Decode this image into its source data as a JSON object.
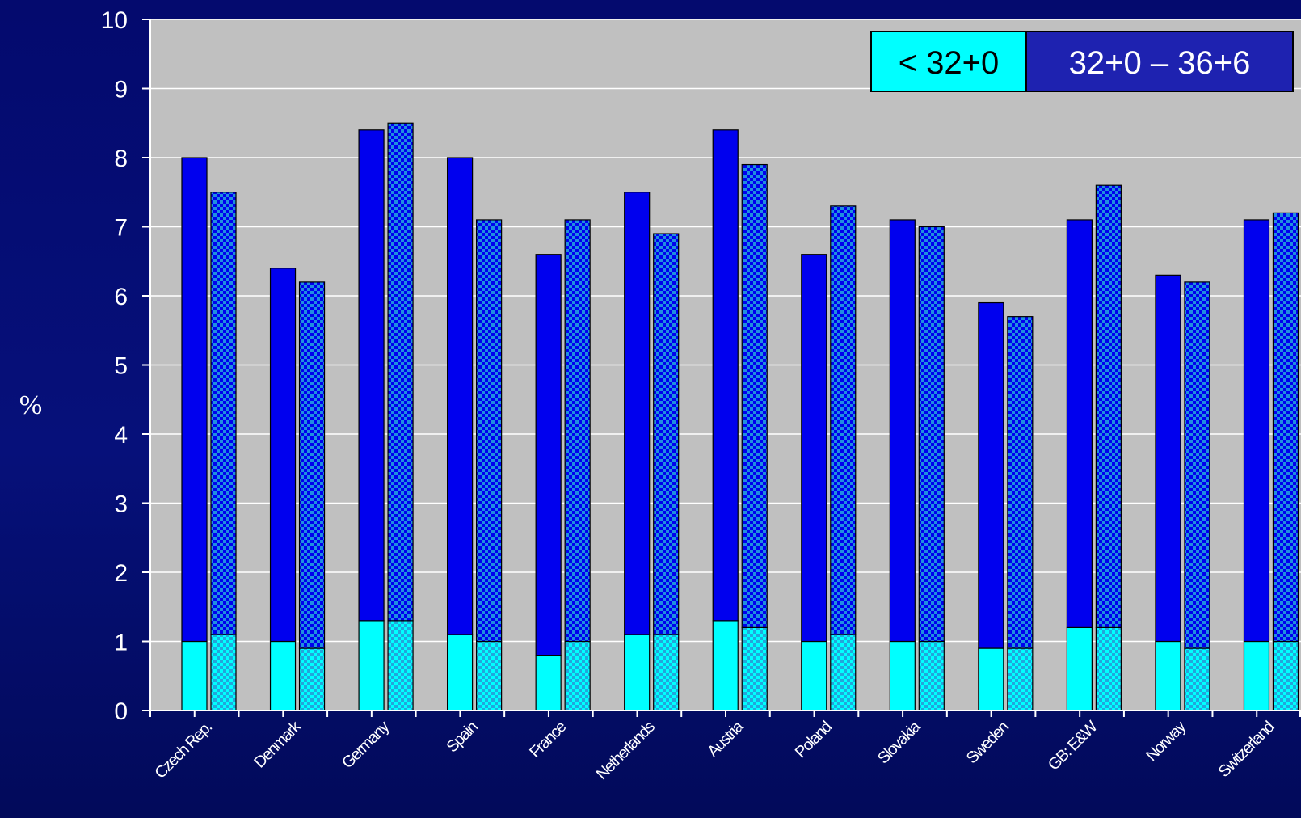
{
  "chart_data": {
    "type": "bar",
    "ylabel": "%",
    "ylim": [
      0,
      10
    ],
    "yticks": [
      "0",
      "1",
      "2",
      "3",
      "4",
      "5",
      "6",
      "7",
      "8",
      "9",
      "10"
    ],
    "grid": true,
    "legend_position": "top-right",
    "categories": [
      "Czech Rep.",
      "Denmark",
      "Germany",
      "Spain",
      "France",
      "Netherlands",
      "Austria",
      "Poland",
      "Slovakia",
      "Sweden",
      "GB: E&W",
      "Norway",
      "Switzerland"
    ],
    "stacks": [
      {
        "name": "bar-set-a",
        "pattern": "solid",
        "series": [
          {
            "name": "< 32+0",
            "color": "#00ffff",
            "values": [
              1.0,
              1.0,
              1.3,
              1.1,
              0.8,
              1.1,
              1.3,
              1.0,
              1.0,
              0.9,
              1.2,
              1.0,
              1.0
            ]
          },
          {
            "name": "32+0 – 36+6",
            "color": "#0000ee",
            "values": [
              7.0,
              5.4,
              7.1,
              6.9,
              5.8,
              6.4,
              7.1,
              5.6,
              6.1,
              5.0,
              5.9,
              5.3,
              6.1
            ]
          }
        ],
        "totals": [
          8.0,
          6.4,
          8.4,
          8.0,
          6.6,
          7.5,
          8.4,
          6.6,
          7.1,
          5.9,
          7.1,
          6.3,
          7.1
        ]
      },
      {
        "name": "bar-set-b",
        "pattern": "checkered",
        "series": [
          {
            "name": "< 32+0",
            "color": "#00ffff",
            "values": [
              1.1,
              0.9,
              1.3,
              1.0,
              1.0,
              1.1,
              1.2,
              1.1,
              1.0,
              0.9,
              1.2,
              0.9,
              1.0
            ]
          },
          {
            "name": "32+0 – 36+6",
            "color": "#0000ee",
            "values": [
              6.4,
              5.3,
              7.2,
              6.1,
              6.1,
              5.8,
              6.7,
              6.2,
              6.0,
              4.8,
              6.4,
              5.3,
              6.2
            ]
          }
        ],
        "totals": [
          7.5,
          6.2,
          8.5,
          7.1,
          7.1,
          6.9,
          7.9,
          7.3,
          7.0,
          5.7,
          7.6,
          6.2,
          7.2
        ]
      }
    ],
    "legend": [
      {
        "label": "< 32+0",
        "color": "#00ffff",
        "text_color": "#000000"
      },
      {
        "label": "32+0 – 36+6",
        "color": "#1e22b0",
        "text_color": "#ffffff"
      }
    ]
  },
  "colors": {
    "background": "#040a6e",
    "plot_area": "#c0c0c0",
    "gridline": "#ffffff",
    "light_segment": "#00ffff",
    "dark_segment": "#0000ee",
    "checker_overlay": "#1f8fdf"
  }
}
